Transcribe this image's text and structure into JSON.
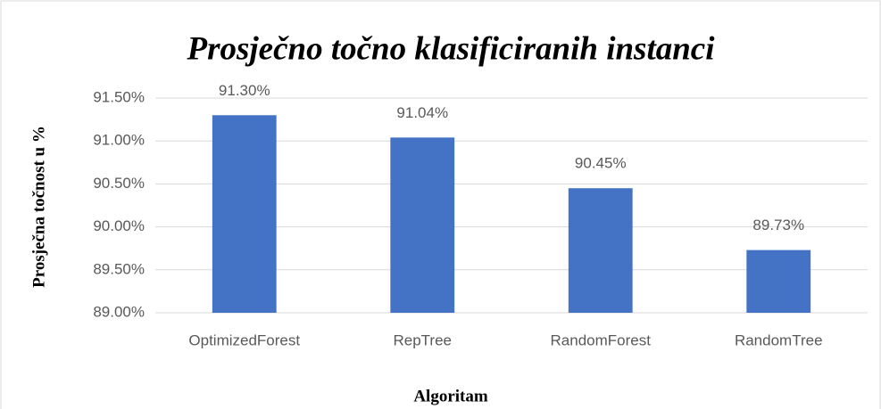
{
  "chart_data": {
    "type": "bar",
    "title": "Prosječno točno klasificiranih instanci",
    "x_label": "Algoritam",
    "y_label": "Prosječna točnost u %",
    "categories": [
      "OptimizedForest",
      "RepTree",
      "RandomForest",
      "RandomTree"
    ],
    "values": [
      91.3,
      91.04,
      90.45,
      89.73
    ],
    "value_labels": [
      "91.30%",
      "91.04%",
      "90.45%",
      "89.73%"
    ],
    "color": "#4472c4",
    "ylim": [
      89,
      91.5
    ],
    "yticks": [
      {
        "value": 89,
        "label": "89.00%"
      },
      {
        "value": 89.5,
        "label": "89.50%"
      },
      {
        "value": 90,
        "label": "90.00%"
      },
      {
        "value": 90.5,
        "label": "90.50%"
      },
      {
        "value": 91,
        "label": "91.00%"
      },
      {
        "value": 91.5,
        "label": "91.50%"
      }
    ],
    "grid": true
  }
}
